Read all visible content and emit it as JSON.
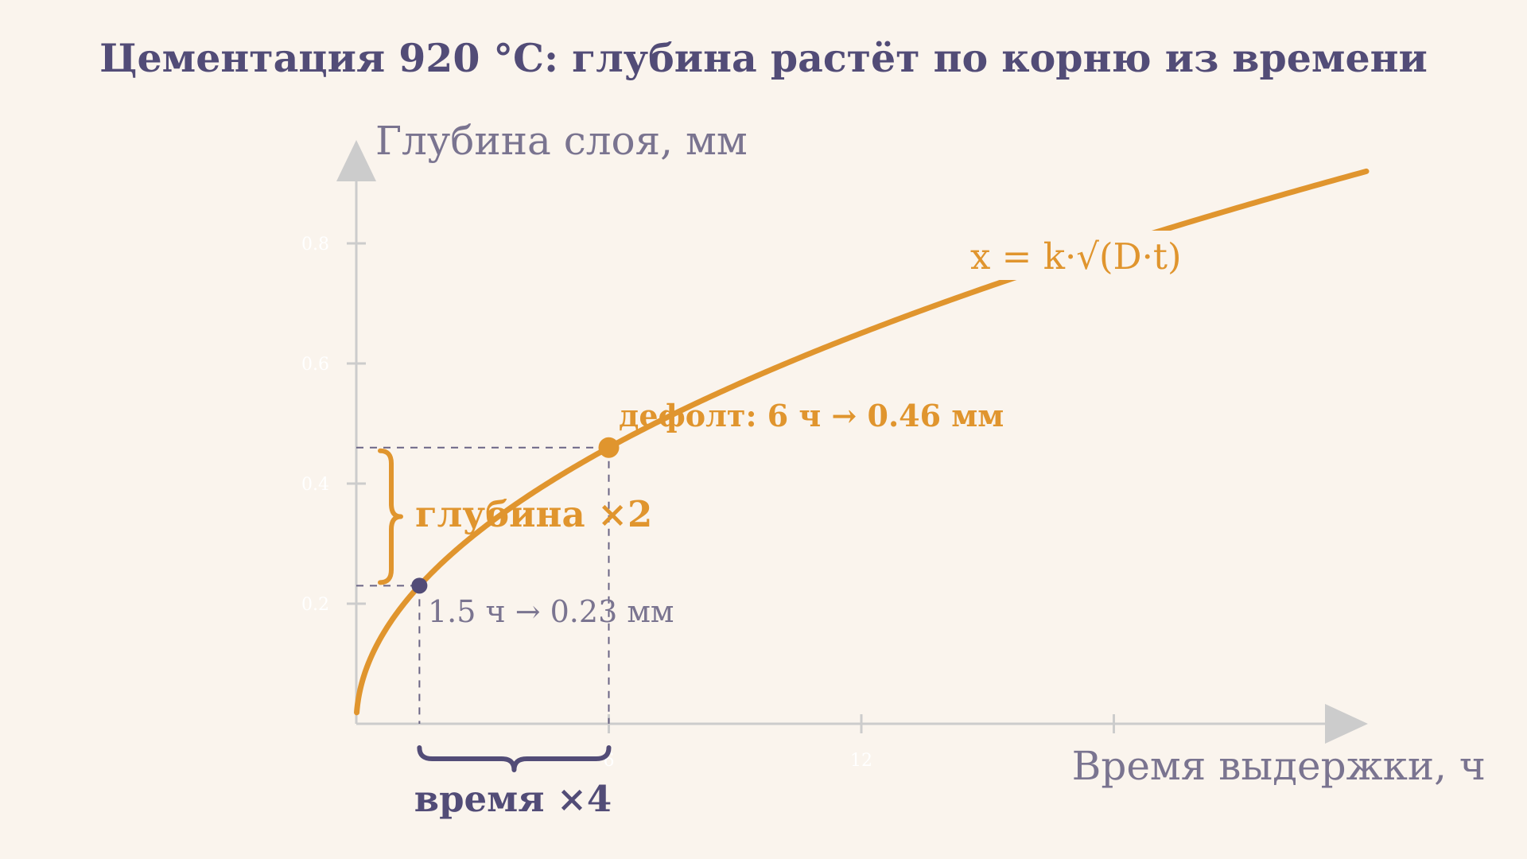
{
  "colors": {
    "background": "#faf4ed",
    "curve": "#e0952e",
    "accent_navy": "#524c77",
    "axis": "#cccccc",
    "muted_text": "#7a7490",
    "tick_text": "#ffffff"
  },
  "chart_data": {
    "type": "line",
    "title": "Цементация 920 °C: глубина растёт по корню из времени",
    "xlabel": "Время выдержки, ч",
    "ylabel": "Глубина слоя, мм",
    "xlim": [
      0,
      24
    ],
    "ylim": [
      0,
      0.96
    ],
    "x_ticks": [
      6,
      12,
      18
    ],
    "x_tick_labels": [
      "6",
      "12",
      ""
    ],
    "y_ticks": [
      0.2,
      0.4,
      0.6,
      0.8
    ],
    "y_tick_labels": [
      "0.2",
      "0.4",
      "0.6",
      "0.8"
    ],
    "grid": false,
    "series": [
      {
        "name": "x = k·√(D·t)",
        "formula": "sqrt",
        "k": 0.1878,
        "x_range": [
          0.01,
          24
        ]
      }
    ],
    "highlight_points": [
      {
        "x": 1.5,
        "y": 0.23,
        "label": "1.5 ч → 0.23 мм",
        "color": "#524c77"
      },
      {
        "x": 6,
        "y": 0.46,
        "label": "дефолт: 6 ч → 0.46 мм",
        "color": "#e0952e"
      }
    ],
    "annotations": {
      "formula_label": "x = k·√(D·t)",
      "depth_brace_label": "глубина ×2",
      "time_brace_label": "время ×4"
    }
  }
}
